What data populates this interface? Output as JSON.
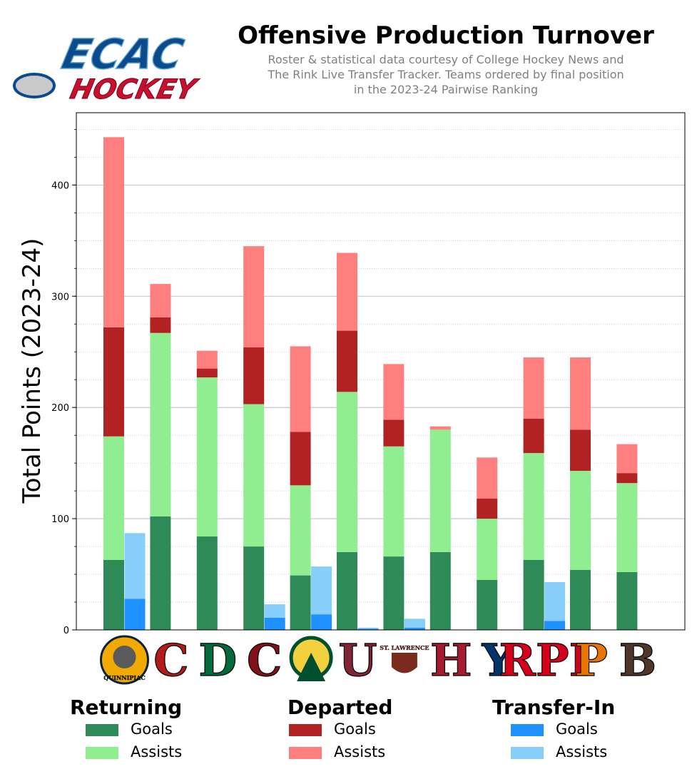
{
  "header": {
    "logo_text_top": "ECAC",
    "logo_text_bottom": "HOCKEY",
    "title": "Offensive Production Turnover",
    "subtitle_lines": [
      "Roster & statistical data courtesy of College Hockey News and",
      "The Rink Live Transfer Tracker. Teams ordered by final position",
      "in the 2023-24 Pairwise Ranking"
    ]
  },
  "colors": {
    "returning_goals": "#2e8b57",
    "returning_assists": "#90ee90",
    "departed_goals": "#b22222",
    "departed_assists": "#ff7f7f",
    "transfer_goals": "#1e90ff",
    "transfer_assists": "#87cefa"
  },
  "chart_data": {
    "type": "bar",
    "ylabel": "Total Points (2023-24)",
    "xlabel": "",
    "ylim": [
      0,
      465
    ],
    "yticks": [
      0,
      100,
      200,
      300,
      400
    ],
    "grid": true,
    "categories": [
      "Quinnipiac",
      "Cornell",
      "Dartmouth",
      "Colgate",
      "Clarkson",
      "Union",
      "St. Lawrence",
      "Harvard",
      "Yale",
      "RPI",
      "Princeton",
      "Brown"
    ],
    "team_logo_text": [
      "QUINNIPIAC",
      "C",
      "D",
      "C",
      "",
      "U",
      "ST. LAWRENCE",
      "H",
      "Y",
      "RPI",
      "P",
      "B"
    ],
    "returning_goals": [
      63,
      102,
      84,
      75,
      49,
      70,
      66,
      70,
      45,
      63,
      54,
      52
    ],
    "returning_assists": [
      111,
      165,
      143,
      128,
      81,
      144,
      99,
      110,
      55,
      96,
      89,
      80
    ],
    "departed_goals": [
      98,
      14,
      8,
      51,
      48,
      55,
      24,
      0,
      18,
      31,
      37,
      9
    ],
    "departed_assists": [
      171,
      30,
      16,
      91,
      77,
      70,
      50,
      3,
      37,
      55,
      65,
      26
    ],
    "transfer_goals": [
      28,
      0,
      0,
      11,
      14,
      1,
      2,
      0,
      0,
      8,
      0,
      0
    ],
    "transfer_assists": [
      59,
      0,
      0,
      12,
      43,
      1,
      8,
      0,
      0,
      35,
      0,
      0
    ]
  },
  "legend": {
    "groups": [
      {
        "title": "Returning",
        "items": [
          "Goals",
          "Assists"
        ]
      },
      {
        "title": "Departed",
        "items": [
          "Goals",
          "Assists"
        ]
      },
      {
        "title": "Transfer-In",
        "items": [
          "Goals",
          "Assists"
        ]
      }
    ]
  }
}
